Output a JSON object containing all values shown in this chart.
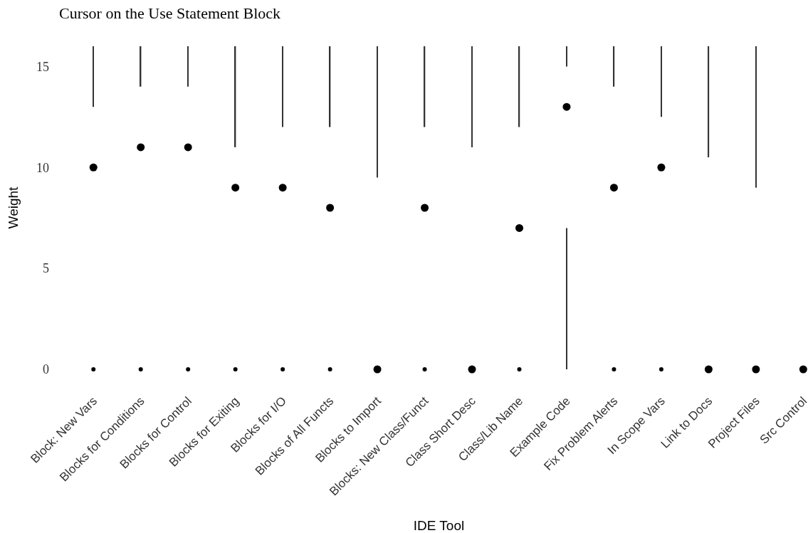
{
  "chart_data": {
    "type": "scatter",
    "title": "Cursor on the Use Statement Block",
    "xlabel": "IDE Tool",
    "ylabel": "Weight",
    "categories": [
      "Block: New Vars",
      "Blocks for Conditions",
      "Blocks for Control",
      "Blocks for Exiting",
      "Blocks for I/O",
      "Blocks of All Functs",
      "Blocks to Import",
      "Blocks: New Class/Funct",
      "Class Short Desc",
      "Class/Lib Name",
      "Example Code",
      "Fix Problem Alerts",
      "In Scope Vars",
      "Link to Docs",
      "Project Files",
      "Src Control"
    ],
    "ylim": [
      0,
      16
    ],
    "yticks": [
      0,
      5,
      10,
      15
    ],
    "grid": false,
    "marker": "circle",
    "series": [
      {
        "type": "bar",
        "color": "#333333",
        "base": [
          13,
          14,
          14,
          11,
          12,
          12,
          9.5,
          12,
          11,
          12,
          15,
          14,
          12.5,
          10.5,
          9,
          null
        ],
        "values": [
          3,
          2,
          2,
          5,
          4,
          4,
          6.5,
          4,
          5,
          4,
          1,
          2,
          3.5,
          5.5,
          7,
          null
        ]
      },
      {
        "type": "bar",
        "color": "#333333",
        "base": [
          null,
          null,
          null,
          null,
          null,
          null,
          null,
          null,
          null,
          null,
          0,
          null,
          null,
          null,
          null,
          null
        ],
        "values": [
          null,
          null,
          null,
          null,
          null,
          null,
          null,
          null,
          null,
          null,
          7,
          null,
          null,
          null,
          null,
          null
        ]
      },
      {
        "color": "#000000",
        "values": [
          0,
          0,
          0,
          0,
          0,
          0,
          null,
          0,
          null,
          0,
          null,
          0,
          0,
          null,
          null,
          null
        ]
      },
      {
        "color": "#000000",
        "values": [
          10,
          11,
          11,
          9,
          9,
          8,
          0,
          8,
          0,
          7,
          13,
          9,
          10,
          0,
          0,
          0
        ]
      }
    ]
  }
}
